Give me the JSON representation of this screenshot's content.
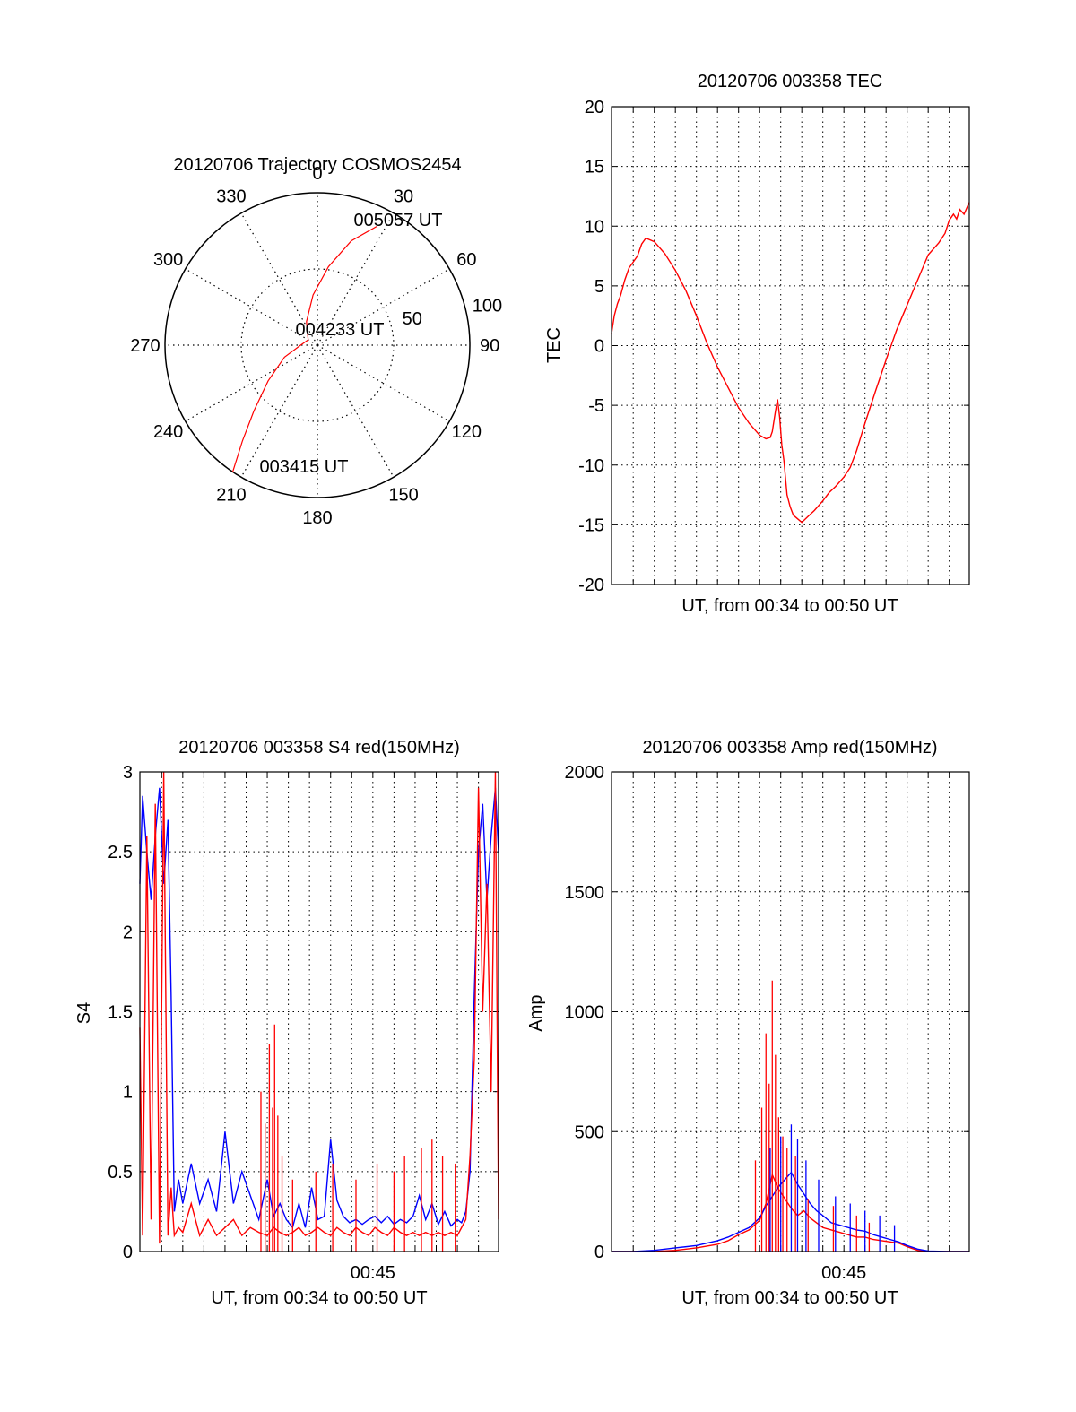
{
  "colors": {
    "red": "#ff0000",
    "blue": "#0000ff",
    "axis": "#000000",
    "grid": "#000000"
  },
  "chart_data": [
    {
      "id": "polar",
      "type": "polar-trajectory",
      "title": "20120706 Trajectory COSMOS2454",
      "angle_labels": [
        "0",
        "30",
        "60",
        "90",
        "120",
        "150",
        "180",
        "210",
        "240",
        "270",
        "300",
        "330"
      ],
      "radial_ticks": [
        50,
        100
      ],
      "radial_max": 100,
      "track": {
        "series_color": "red",
        "points": [
          {
            "az": 213.7,
            "r": 100.3
          },
          {
            "az": 218,
            "r": 80
          },
          {
            "az": 224,
            "r": 60
          },
          {
            "az": 234,
            "r": 40
          },
          {
            "az": 250,
            "r": 23
          },
          {
            "az": 270,
            "r": 11
          },
          {
            "az": 300,
            "r": 7
          },
          {
            "az": 335,
            "r": 17
          },
          {
            "az": 355,
            "r": 33
          },
          {
            "az": 8,
            "r": 52
          },
          {
            "az": 18,
            "r": 72
          },
          {
            "az": 26.5,
            "r": 87
          }
        ]
      },
      "annotations": [
        {
          "text": "005057 UT",
          "az": 30,
          "r": 80
        },
        {
          "text": "004233 UT",
          "az": 0,
          "r": 0
        },
        {
          "text": "003415 UT",
          "az": 210,
          "r": 100
        }
      ]
    },
    {
      "id": "tec",
      "type": "line",
      "title": "20120706 003358 TEC",
      "xlabel": "UT, from 00:34 to 00:50 UT",
      "ylabel": "TEC",
      "xlim": [
        33.97,
        50.95
      ],
      "ylim": [
        -20,
        20
      ],
      "yticks": [
        20,
        15,
        10,
        5,
        0,
        -5,
        -10,
        -15,
        -20
      ],
      "xticks": [],
      "grid": true,
      "series": [
        {
          "color": "red",
          "x": [
            33.97,
            34.1,
            34.25,
            34.4,
            34.6,
            34.8,
            35.0,
            35.2,
            35.4,
            35.6,
            36.0,
            36.5,
            37.0,
            37.5,
            38.0,
            38.5,
            39.0,
            39.5,
            40.0,
            40.5,
            41.0,
            41.3,
            41.5,
            41.6,
            41.75,
            41.85,
            41.95,
            42.05,
            42.15,
            42.3,
            42.45,
            42.6,
            42.8,
            43.0,
            43.3,
            43.6,
            44.0,
            44.3,
            44.6,
            45.0,
            45.3,
            45.6,
            46.0,
            46.5,
            47.0,
            47.5,
            48.0,
            48.5,
            49.0,
            49.5,
            49.8,
            50.0,
            50.2,
            50.35,
            50.5,
            50.7,
            50.95
          ],
          "y": [
            1,
            2.5,
            3.5,
            4.2,
            5.5,
            6.5,
            7,
            7.5,
            8.5,
            9,
            8.7,
            7.7,
            6.3,
            4.6,
            2.5,
            0.2,
            -1.8,
            -3.5,
            -5.2,
            -6.5,
            -7.5,
            -7.8,
            -7.7,
            -7.2,
            -5.5,
            -4.5,
            -6.0,
            -8.3,
            -9.6,
            -12.5,
            -13.5,
            -14.2,
            -14.5,
            -14.8,
            -14.3,
            -13.8,
            -13,
            -12.3,
            -11.8,
            -11,
            -10.2,
            -8.8,
            -6.5,
            -3.8,
            -1.2,
            1.3,
            3.4,
            5.5,
            7.6,
            8.6,
            9.4,
            10.5,
            11,
            10.6,
            11.4,
            11,
            12
          ]
        }
      ]
    },
    {
      "id": "s4",
      "type": "line",
      "title": "20120706 003358 S4 red(150MHz)",
      "xlabel": "UT, from 00:34 to 00:50 UT",
      "ylabel": "S4",
      "xlim": [
        33.97,
        50.95
      ],
      "ylim": [
        0,
        3
      ],
      "yticks": [
        3,
        2.5,
        2,
        1.5,
        1,
        0.5,
        0
      ],
      "yticklabels": [
        "3",
        "2.5",
        "2",
        "1.5",
        "1",
        "0.5",
        "0"
      ],
      "xticks": [
        45.0
      ],
      "xticklabels": [
        "00:45"
      ],
      "grid": true,
      "series": [
        {
          "color": "blue",
          "x": [
            33.97,
            34.1,
            34.3,
            34.5,
            34.7,
            34.9,
            35.1,
            35.3,
            35.45,
            35.6,
            35.8,
            36.0,
            36.4,
            36.8,
            37.2,
            37.6,
            38.0,
            38.4,
            38.8,
            39.2,
            39.6,
            40.0,
            40.3,
            40.6,
            40.9,
            41.2,
            41.5,
            41.8,
            42.1,
            42.4,
            42.7,
            43.0,
            43.3,
            43.6,
            43.9,
            44.2,
            44.5,
            44.8,
            45.1,
            45.4,
            45.7,
            46.0,
            46.3,
            46.6,
            46.9,
            47.2,
            47.5,
            47.8,
            48.1,
            48.4,
            48.7,
            49.0,
            49.2,
            49.4,
            49.6,
            49.8,
            50.0,
            50.2,
            50.4,
            50.6,
            50.8,
            50.95
          ],
          "y": [
            2.3,
            2.85,
            2.5,
            2.2,
            2.6,
            2.9,
            2.3,
            2.7,
            1.6,
            0.25,
            0.45,
            0.3,
            0.55,
            0.3,
            0.45,
            0.25,
            0.75,
            0.3,
            0.5,
            0.35,
            0.2,
            0.45,
            0.22,
            0.3,
            0.2,
            0.15,
            0.3,
            0.15,
            0.4,
            0.2,
            0.22,
            0.7,
            0.32,
            0.22,
            0.18,
            0.2,
            0.17,
            0.2,
            0.22,
            0.18,
            0.22,
            0.17,
            0.2,
            0.18,
            0.22,
            0.35,
            0.2,
            0.3,
            0.17,
            0.25,
            0.16,
            0.2,
            0.18,
            0.25,
            0.5,
            1.6,
            2.5,
            2.8,
            2.2,
            2.6,
            2.9,
            2.5
          ]
        },
        {
          "color": "red",
          "x": [
            33.97,
            34.1,
            34.3,
            34.5,
            34.7,
            34.9,
            35.1,
            35.3,
            35.45,
            35.6,
            35.8,
            36.0,
            36.4,
            36.8,
            37.2,
            37.6,
            38.0,
            38.4,
            38.8,
            39.2,
            39.6,
            40.0,
            40.3,
            40.6,
            40.9,
            41.2,
            41.5,
            41.8,
            42.1,
            42.4,
            42.7,
            43.0,
            43.3,
            43.6,
            43.9,
            44.2,
            44.5,
            44.8,
            45.1,
            45.4,
            45.7,
            46.0,
            46.3,
            46.6,
            46.9,
            47.2,
            47.5,
            47.8,
            48.1,
            48.4,
            48.7,
            49.0,
            49.2,
            49.4,
            49.6,
            49.8,
            50.0,
            50.2,
            50.4,
            50.6,
            50.8,
            50.95
          ],
          "y": [
            1.4,
            0.1,
            2.6,
            0.2,
            2.8,
            0.05,
            3.0,
            0.1,
            0.4,
            0.1,
            0.15,
            0.12,
            0.3,
            0.1,
            0.2,
            0.1,
            0.15,
            0.2,
            0.1,
            0.15,
            0.12,
            0.1,
            0.15,
            0.12,
            0.1,
            0.12,
            0.15,
            0.1,
            0.12,
            0.15,
            0.12,
            0.1,
            0.15,
            0.12,
            0.1,
            0.15,
            0.12,
            0.1,
            0.15,
            0.12,
            0.1,
            0.15,
            0.12,
            0.1,
            0.12,
            0.1,
            0.12,
            0.1,
            0.12,
            0.1,
            0.12,
            0.1,
            0.15,
            0.2,
            0.6,
            1.2,
            2.9,
            1.5,
            2.3,
            1.0,
            3.0,
            0.2
          ]
        }
      ],
      "spikes": [
        {
          "x": 39.7,
          "y": 1.0
        },
        {
          "x": 39.9,
          "y": 0.8
        },
        {
          "x": 40.1,
          "y": 1.3
        },
        {
          "x": 40.25,
          "y": 0.9
        },
        {
          "x": 40.35,
          "y": 1.42
        },
        {
          "x": 40.5,
          "y": 0.85
        },
        {
          "x": 40.7,
          "y": 0.6
        },
        {
          "x": 41.2,
          "y": 0.45
        },
        {
          "x": 42.3,
          "y": 0.5
        },
        {
          "x": 43.1,
          "y": 0.55
        },
        {
          "x": 44.2,
          "y": 0.45
        },
        {
          "x": 45.2,
          "y": 0.55
        },
        {
          "x": 46.0,
          "y": 0.5
        },
        {
          "x": 46.5,
          "y": 0.6
        },
        {
          "x": 47.3,
          "y": 0.65
        },
        {
          "x": 47.8,
          "y": 0.7
        },
        {
          "x": 48.3,
          "y": 0.6
        },
        {
          "x": 48.9,
          "y": 0.55
        }
      ]
    },
    {
      "id": "amp",
      "type": "line",
      "title": "20120706 003358 Amp red(150MHz)",
      "xlabel": "UT, from 00:34 to 00:50 UT",
      "ylabel": "Amp",
      "xlim": [
        33.97,
        50.95
      ],
      "ylim": [
        0,
        2000
      ],
      "yticks": [
        2000,
        1500,
        1000,
        500,
        0
      ],
      "xticks": [
        45.0
      ],
      "xticklabels": [
        "00:45"
      ],
      "grid": true,
      "series": [
        {
          "color": "red",
          "x": [
            33.97,
            35.0,
            36.0,
            37.0,
            38.0,
            39.0,
            39.5,
            40.0,
            40.5,
            41.0,
            41.3,
            41.6,
            41.9,
            42.2,
            42.5,
            42.8,
            43.1,
            43.4,
            43.7,
            44.0,
            44.4,
            44.8,
            45.2,
            45.6,
            46.0,
            46.4,
            46.8,
            47.2,
            47.6,
            48.0,
            48.5,
            49.0,
            50.0,
            50.95
          ],
          "y": [
            0,
            0,
            0,
            5,
            15,
            30,
            45,
            70,
            90,
            130,
            200,
            320,
            260,
            220,
            180,
            150,
            170,
            140,
            120,
            100,
            90,
            80,
            70,
            60,
            60,
            50,
            45,
            40,
            35,
            20,
            5,
            0,
            0,
            0
          ]
        },
        {
          "color": "blue",
          "x": [
            33.97,
            35.0,
            36.0,
            37.0,
            38.0,
            39.0,
            39.5,
            40.0,
            40.5,
            41.0,
            41.3,
            41.6,
            41.9,
            42.2,
            42.5,
            42.8,
            43.1,
            43.4,
            43.7,
            44.0,
            44.4,
            44.8,
            45.2,
            45.6,
            46.0,
            46.4,
            46.8,
            47.2,
            47.6,
            48.0,
            48.5,
            49.0,
            50.0,
            50.95
          ],
          "y": [
            0,
            0,
            5,
            15,
            25,
            45,
            60,
            80,
            100,
            140,
            190,
            230,
            270,
            300,
            330,
            280,
            240,
            200,
            170,
            150,
            120,
            110,
            100,
            90,
            85,
            70,
            60,
            50,
            40,
            25,
            10,
            2,
            0,
            0
          ]
        }
      ],
      "spikes": [
        {
          "x": 40.8,
          "y": 380,
          "c": "red"
        },
        {
          "x": 41.1,
          "y": 600,
          "c": "red"
        },
        {
          "x": 41.3,
          "y": 910,
          "c": "red"
        },
        {
          "x": 41.45,
          "y": 700,
          "c": "red"
        },
        {
          "x": 41.6,
          "y": 1130,
          "c": "red"
        },
        {
          "x": 41.75,
          "y": 820,
          "c": "red"
        },
        {
          "x": 41.9,
          "y": 560,
          "c": "red"
        },
        {
          "x": 42.1,
          "y": 480,
          "c": "red"
        },
        {
          "x": 42.3,
          "y": 430,
          "c": "red"
        },
        {
          "x": 42.7,
          "y": 400,
          "c": "red"
        },
        {
          "x": 43.3,
          "y": 220,
          "c": "red"
        },
        {
          "x": 44.5,
          "y": 190,
          "c": "red"
        },
        {
          "x": 45.6,
          "y": 150,
          "c": "red"
        },
        {
          "x": 46.2,
          "y": 120,
          "c": "red"
        },
        {
          "x": 41.5,
          "y": 430,
          "c": "blue"
        },
        {
          "x": 42.0,
          "y": 480,
          "c": "blue"
        },
        {
          "x": 42.5,
          "y": 530,
          "c": "blue"
        },
        {
          "x": 42.8,
          "y": 470,
          "c": "blue"
        },
        {
          "x": 43.2,
          "y": 380,
          "c": "blue"
        },
        {
          "x": 43.8,
          "y": 300,
          "c": "blue"
        },
        {
          "x": 44.6,
          "y": 230,
          "c": "blue"
        },
        {
          "x": 45.3,
          "y": 200,
          "c": "blue"
        },
        {
          "x": 46.0,
          "y": 170,
          "c": "blue"
        },
        {
          "x": 46.7,
          "y": 150,
          "c": "blue"
        },
        {
          "x": 47.4,
          "y": 110,
          "c": "blue"
        }
      ]
    }
  ]
}
